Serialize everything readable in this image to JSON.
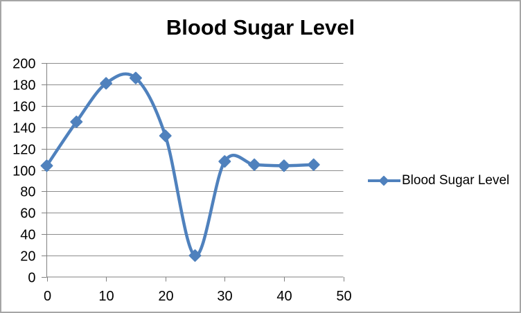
{
  "window": {
    "border_color": "#A6A6A6",
    "background_color": "#FFFFFF"
  },
  "chart_data": {
    "type": "line",
    "title": "Blood Sugar Level",
    "series_name": "Blood Sugar Level",
    "x": [
      0,
      5,
      10,
      15,
      20,
      25,
      30,
      35,
      40,
      45
    ],
    "values": [
      104,
      145,
      181,
      186,
      132,
      20,
      108,
      105,
      104,
      105
    ],
    "xlim": [
      0,
      50
    ],
    "ylim": [
      0,
      200
    ],
    "x_ticks": [
      0,
      10,
      20,
      30,
      40,
      50
    ],
    "y_ticks": [
      0,
      20,
      40,
      60,
      80,
      100,
      120,
      140,
      160,
      180,
      200
    ],
    "grid": true,
    "smooth_line": true,
    "marker": "diamond",
    "legend_position": "right",
    "series_color": "#4F81BD",
    "gridline_color": "#8C8C8C",
    "axis_color": "#808080",
    "tick_label_color": "#000000"
  }
}
